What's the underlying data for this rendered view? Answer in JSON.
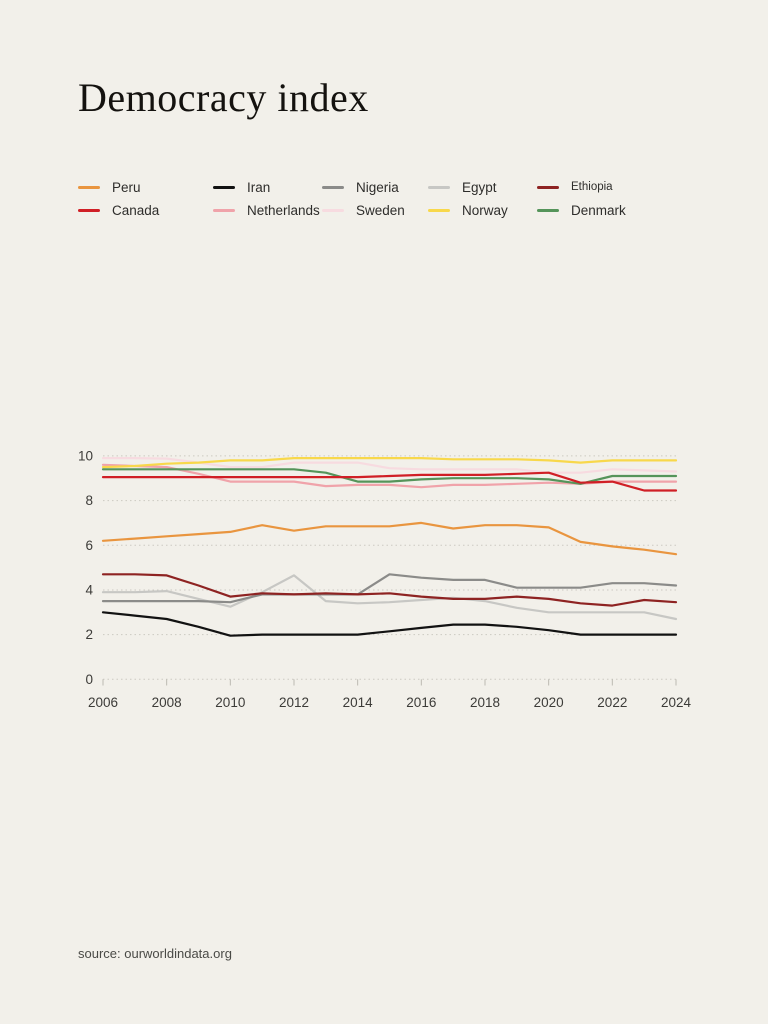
{
  "page": {
    "background": "#f2f0ea"
  },
  "header": {
    "title": "Democracy index"
  },
  "footer": {
    "source_note": "source: ourworldindata.org"
  },
  "legend": {
    "items": [
      {
        "label": "Peru",
        "color": "#e9953f"
      },
      {
        "label": "Iran",
        "color": "#121212"
      },
      {
        "label": "Nigeria",
        "color": "#8b8b89"
      },
      {
        "label": "Egypt",
        "color": "#c7c7c4"
      },
      {
        "label": "Ethiopia",
        "color": "#8e2322"
      },
      {
        "label": "Canada",
        "color": "#d01f26"
      },
      {
        "label": "Netherlands",
        "color": "#f0a3aa"
      },
      {
        "label": "Sweden",
        "color": "#f7dbe0"
      },
      {
        "label": "Norway",
        "color": "#f8d84b"
      },
      {
        "label": "Denmark",
        "color": "#55945a"
      }
    ]
  },
  "chart_data": {
    "type": "line",
    "title": "Democracy index",
    "xlabel": "",
    "ylabel": "",
    "x": [
      2006,
      2007,
      2008,
      2009,
      2010,
      2011,
      2012,
      2013,
      2014,
      2015,
      2016,
      2017,
      2018,
      2019,
      2020,
      2021,
      2022,
      2023,
      2024
    ],
    "xtick_labels": [
      2006,
      2008,
      2010,
      2012,
      2014,
      2016,
      2018,
      2020,
      2022,
      2024
    ],
    "ytick_labels": [
      0,
      2,
      4,
      6,
      8,
      10
    ],
    "ylim": [
      0,
      10.4
    ],
    "grid": "horizontal dotted",
    "legend_position": "top",
    "axis_text_color": "#3c3b38",
    "grid_color": "#ccc9c1",
    "series": [
      {
        "name": "Peru",
        "color": "#e9953f",
        "values": [
          6.2,
          6.3,
          6.4,
          6.5,
          6.6,
          6.9,
          6.65,
          6.85,
          6.85,
          6.85,
          7.0,
          6.75,
          6.9,
          6.9,
          6.8,
          6.15,
          5.95,
          5.8,
          5.6
        ]
      },
      {
        "name": "Iran",
        "color": "#121212",
        "values": [
          3.0,
          2.85,
          2.7,
          2.35,
          1.95,
          2.0,
          2.0,
          2.0,
          2.0,
          2.15,
          2.3,
          2.45,
          2.45,
          2.35,
          2.2,
          2.0,
          2.0,
          2.0,
          2.0
        ]
      },
      {
        "name": "Nigeria",
        "color": "#8b8b89",
        "values": [
          3.5,
          3.5,
          3.5,
          3.5,
          3.45,
          3.8,
          3.8,
          3.8,
          3.8,
          4.7,
          4.55,
          4.45,
          4.45,
          4.1,
          4.1,
          4.1,
          4.3,
          4.3,
          4.2
        ]
      },
      {
        "name": "Egypt",
        "color": "#c7c7c4",
        "values": [
          3.9,
          3.9,
          3.95,
          3.6,
          3.25,
          3.9,
          4.65,
          3.5,
          3.4,
          3.45,
          3.55,
          3.65,
          3.5,
          3.2,
          3.0,
          3.0,
          3.0,
          3.0,
          2.7
        ]
      },
      {
        "name": "Ethiopia",
        "color": "#8e2322",
        "values": [
          4.7,
          4.7,
          4.65,
          4.2,
          3.7,
          3.85,
          3.8,
          3.85,
          3.8,
          3.85,
          3.7,
          3.6,
          3.6,
          3.7,
          3.6,
          3.4,
          3.3,
          3.55,
          3.45
        ]
      },
      {
        "name": "Canada",
        "color": "#d01f26",
        "values": [
          9.05,
          9.05,
          9.05,
          9.05,
          9.05,
          9.05,
          9.05,
          9.05,
          9.05,
          9.1,
          9.15,
          9.15,
          9.15,
          9.2,
          9.25,
          8.8,
          8.85,
          8.45,
          8.45
        ]
      },
      {
        "name": "Netherlands",
        "color": "#f0a3aa",
        "values": [
          9.6,
          9.55,
          9.5,
          9.2,
          8.85,
          8.85,
          8.85,
          8.65,
          8.7,
          8.7,
          8.6,
          8.7,
          8.7,
          8.75,
          8.8,
          8.75,
          8.85,
          8.85,
          8.85
        ]
      },
      {
        "name": "Sweden",
        "color": "#f7dbe0",
        "values": [
          9.9,
          9.9,
          9.88,
          9.7,
          9.5,
          9.5,
          9.7,
          9.7,
          9.7,
          9.45,
          9.4,
          9.4,
          9.4,
          9.4,
          9.25,
          9.25,
          9.4,
          9.35,
          9.3
        ]
      },
      {
        "name": "Norway",
        "color": "#f8d84b",
        "values": [
          9.5,
          9.55,
          9.65,
          9.7,
          9.8,
          9.8,
          9.9,
          9.9,
          9.9,
          9.9,
          9.9,
          9.85,
          9.85,
          9.85,
          9.8,
          9.7,
          9.8,
          9.8,
          9.8
        ]
      },
      {
        "name": "Denmark",
        "color": "#55945a",
        "values": [
          9.4,
          9.4,
          9.4,
          9.4,
          9.4,
          9.4,
          9.4,
          9.25,
          8.85,
          8.85,
          8.95,
          9.0,
          9.0,
          9.0,
          8.95,
          8.75,
          9.1,
          9.1,
          9.1
        ]
      }
    ]
  }
}
